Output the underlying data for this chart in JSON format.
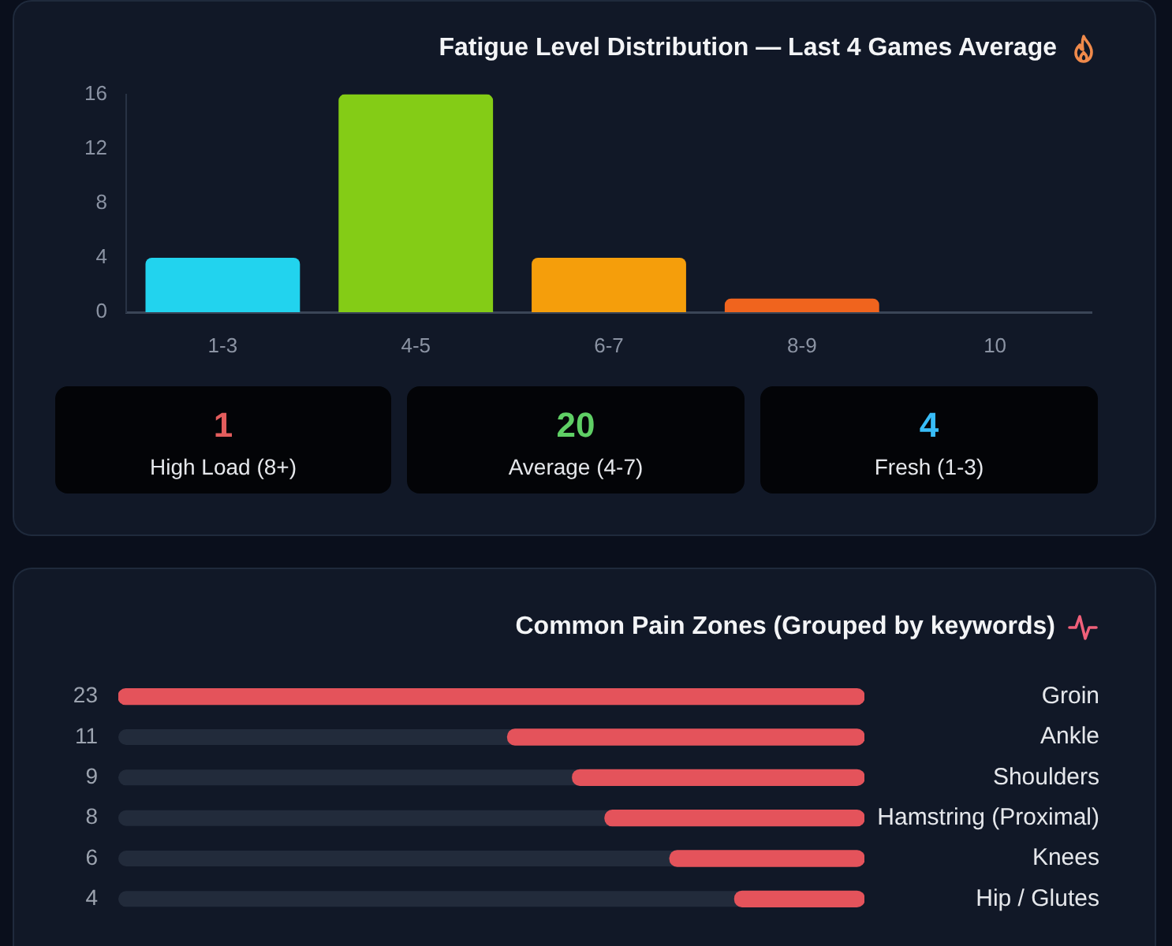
{
  "chart_data": [
    {
      "type": "bar",
      "title": "Fatigue Level Distribution — Last 4 Games Average",
      "categories": [
        "1-3",
        "4-5",
        "6-7",
        "8-9",
        "10"
      ],
      "values": [
        4,
        16,
        4,
        1,
        0
      ],
      "colors": [
        "#22d3ee",
        "#84cc16",
        "#f59e0b",
        "#f0641e",
        "#ef4444"
      ],
      "ylim": [
        0,
        16
      ],
      "yticks": [
        0,
        4,
        8,
        12,
        16
      ],
      "grid": false
    },
    {
      "type": "other",
      "categories": [
        "High Load (8+)",
        "Average (4-7)",
        "Fresh (1-3)"
      ],
      "values": [
        1,
        20,
        4
      ],
      "data_labels": true
    },
    {
      "type": "bar",
      "orientation": "horizontal",
      "title": "Common Pain Zones (Grouped by keywords)",
      "categories": [
        "Groin",
        "Ankle",
        "Shoulders",
        "Hamstring (Proximal)",
        "Knees",
        "Hip / Glutes"
      ],
      "values": [
        23,
        11,
        9,
        8,
        6,
        4
      ],
      "color": "#e4535b",
      "xlim": [
        23,
        0
      ],
      "data_labels": true,
      "tick_labels": "y",
      "grid": false
    }
  ]
}
